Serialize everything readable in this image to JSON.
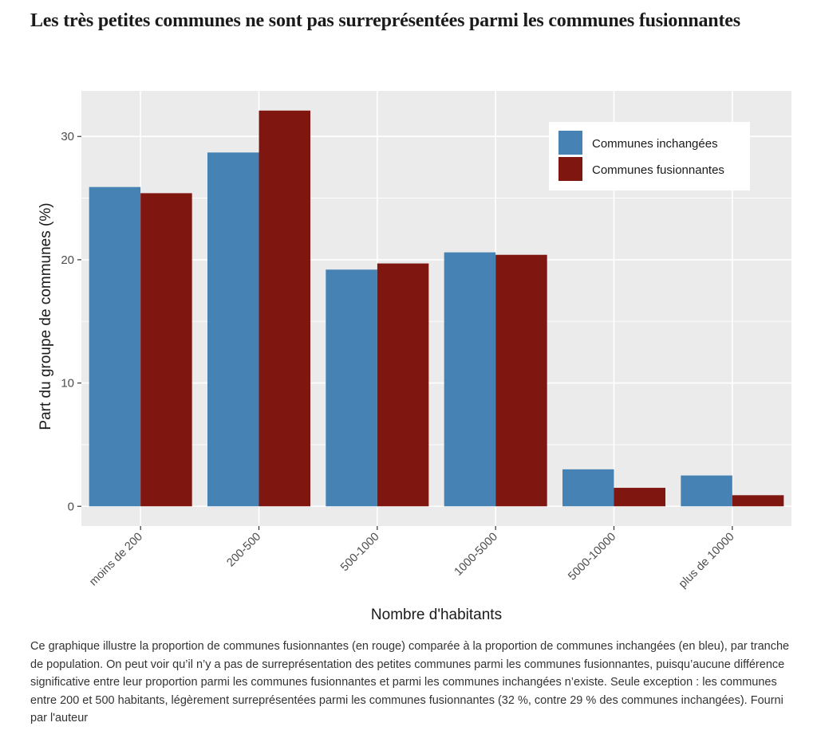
{
  "page": {
    "title": "Les très petites communes ne sont pas surreprésentées parmi les communes fusionnantes",
    "caption": "Ce graphique illustre la proportion de communes fusionnantes (en rouge) comparée à la proportion de communes inchangées (en bleu), par tranche de population. On peut voir qu’il n’y a pas de surreprésentation des petites communes parmi les communes fusionnantes, puisqu’aucune différence significative entre leur proportion parmi les communes fusionnantes et parmi les communes inchangées n’existe. Seule exception : les communes entre 200 et 500 habitants, légèrement surreprésentées parmi les communes fusionnantes (32 %, contre 29 % des communes inchangées).",
    "credit": "Fourni par l'auteur"
  },
  "chart_data": {
    "type": "bar",
    "title": "Les très petites communes ne sont pas surreprésentées parmi les communes fusionnantes",
    "xlabel": "Nombre d'habitants",
    "ylabel": "Part du groupe de communes (%)",
    "categories": [
      "moins de 200",
      "200-500",
      "500-1000",
      "1000-5000",
      "5000-10000",
      "plus de 10000"
    ],
    "series": [
      {
        "name": "Communes inchangées",
        "color": "#4682B4",
        "values": [
          25.9,
          28.7,
          19.2,
          20.6,
          3.0,
          2.5
        ]
      },
      {
        "name": "Communes fusionnantes",
        "color": "#7F1710",
        "values": [
          25.4,
          32.1,
          19.7,
          20.4,
          1.5,
          0.9
        ]
      }
    ],
    "ylim": [
      -1.6,
      33.7
    ],
    "yticks": [
      0,
      10,
      20,
      30
    ],
    "grid": true,
    "legend_position": "top-right",
    "panel_background": "#EBEBEB",
    "grid_color": "#FFFFFF"
  }
}
